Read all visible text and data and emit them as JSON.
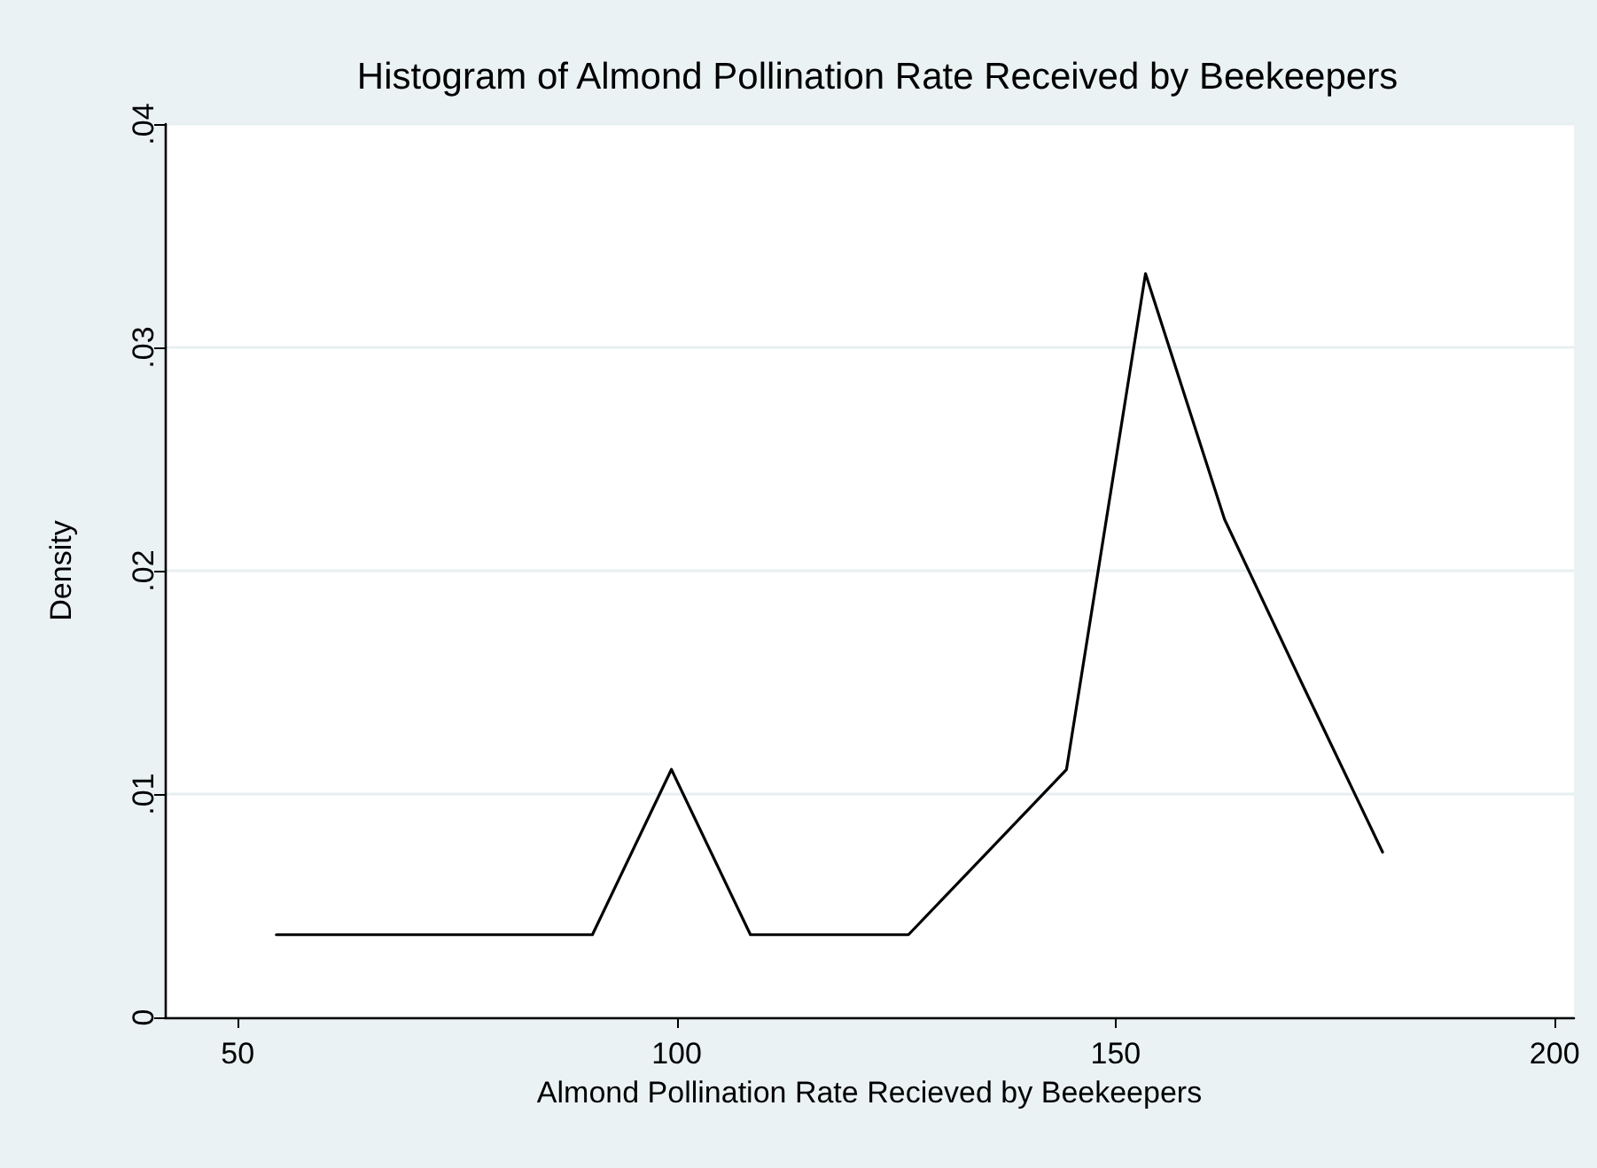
{
  "chart_data": {
    "type": "line",
    "title": "Histogram of Almond Pollination Rate Received by Beekeepers",
    "xlabel": "Almond Pollination Rate Recieved by Beekeepers",
    "ylabel": "Density",
    "x": [
      54.4,
      63.4,
      72.4,
      81.4,
      90.4,
      99.4,
      108.4,
      117.4,
      126.4,
      135.4,
      144.4,
      153.4,
      162.4,
      171.4,
      180.4
    ],
    "series": [
      {
        "color": "#000000",
        "values": [
          0.0037,
          0.0037,
          0.0037,
          0.0037,
          0.0037,
          0.0111,
          0.0037,
          0.0037,
          0.0037,
          0.0074,
          0.0111,
          0.0333,
          0.0223,
          0.0148,
          0.0074
        ]
      }
    ],
    "xlim": [
      41.7,
      202.2
    ],
    "xticks": [
      50,
      100,
      150,
      200
    ],
    "ylim": [
      0,
      0.04
    ],
    "yticks": [
      0,
      {
        "value": 0.01,
        "label": ".01"
      },
      {
        "value": 0.02,
        "label": ".02"
      },
      {
        "value": 0.03,
        "label": ".03"
      },
      {
        "value": 0.04,
        "label": ".04"
      }
    ],
    "grid": "y",
    "marker": "none",
    "line_style": "solid"
  }
}
